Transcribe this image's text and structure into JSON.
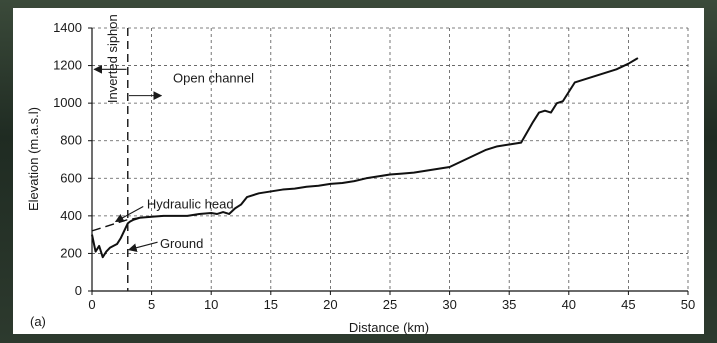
{
  "chart_data": {
    "type": "line",
    "panel_label": "(a)",
    "xlabel": "Distance (km)",
    "ylabel": "Elevation (m.a.s.l)",
    "xlim": [
      0,
      50
    ],
    "ylim": [
      0,
      1400
    ],
    "xticks": [
      0,
      5,
      10,
      15,
      20,
      25,
      30,
      35,
      40,
      45,
      50
    ],
    "yticks": [
      0,
      200,
      400,
      600,
      800,
      1000,
      1200,
      1400
    ],
    "grid": true,
    "divider_x": 3,
    "series": [
      {
        "style": "solid",
        "x": [
          0,
          0.3,
          0.6,
          0.9,
          1.2,
          1.5,
          1.8,
          2.1,
          2.4,
          2.7,
          3.0,
          3.2,
          3.5,
          4,
          5,
          6,
          7,
          8,
          9,
          10,
          10.5,
          11,
          11.5,
          12,
          12.5,
          13,
          14,
          15,
          16,
          17,
          18,
          19,
          20,
          21,
          22,
          23,
          24,
          25,
          26,
          27,
          28,
          29,
          30,
          31,
          32,
          33,
          34,
          35,
          36,
          37,
          37.5,
          38,
          38.5,
          39,
          39.5,
          40,
          40.5,
          41,
          42,
          43,
          44,
          45,
          45.8
        ],
        "y": [
          300,
          210,
          240,
          180,
          210,
          230,
          240,
          250,
          280,
          320,
          360,
          370,
          380,
          390,
          395,
          400,
          400,
          400,
          410,
          415,
          410,
          420,
          410,
          440,
          460,
          500,
          520,
          530,
          540,
          545,
          555,
          560,
          570,
          575,
          585,
          600,
          610,
          620,
          625,
          630,
          640,
          650,
          660,
          690,
          720,
          750,
          770,
          780,
          790,
          900,
          950,
          960,
          950,
          1000,
          1010,
          1060,
          1110,
          1120,
          1140,
          1160,
          1180,
          1210,
          1240
        ]
      },
      {
        "style": "dashed",
        "x": [
          0,
          1,
          2,
          3,
          4,
          5,
          6,
          7
        ],
        "y": [
          320,
          340,
          360,
          380,
          390,
          395,
          400,
          400
        ]
      }
    ],
    "annotations": [
      {
        "text": "Inverted siphon",
        "x": 2.1,
        "y": 1000,
        "rotate": true
      },
      {
        "text": "Open channel",
        "x": 6.8,
        "y": 1110
      },
      {
        "text": "Hydraulic head",
        "x": 4.6,
        "y": 440
      },
      {
        "text": "Ground",
        "x": 5.7,
        "y": 230
      }
    ],
    "arrows": [
      {
        "from": [
          2.9,
          1180
        ],
        "to": [
          0.2,
          1180
        ]
      },
      {
        "from": [
          3.1,
          1040
        ],
        "to": [
          5.8,
          1040
        ]
      },
      {
        "from": [
          4.3,
          450
        ],
        "to": [
          2.0,
          370
        ]
      },
      {
        "from": [
          5.5,
          260
        ],
        "to": [
          3.1,
          220
        ]
      }
    ]
  }
}
